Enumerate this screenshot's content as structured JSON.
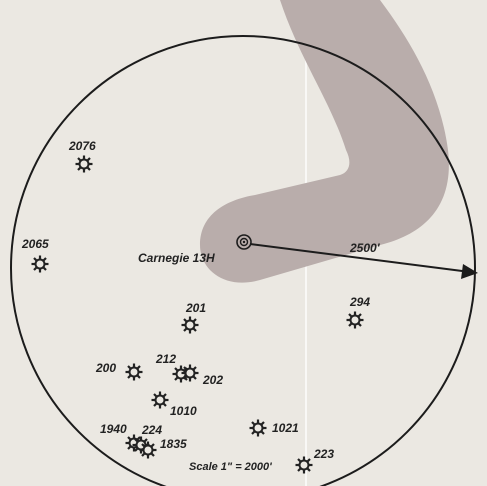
{
  "map": {
    "center_well": {
      "label": "Carnegie 13H"
    },
    "radius_label": "2500'",
    "scale_label": "Scale 1\" = 2000'",
    "wells": [
      {
        "id": "2076",
        "label": "2076"
      },
      {
        "id": "2065",
        "label": "2065"
      },
      {
        "id": "201",
        "label": "201"
      },
      {
        "id": "294",
        "label": "294"
      },
      {
        "id": "200",
        "label": "200"
      },
      {
        "id": "212",
        "label": "212"
      },
      {
        "id": "202",
        "label": "202"
      },
      {
        "id": "1010",
        "label": "1010"
      },
      {
        "id": "1940",
        "label": "1940"
      },
      {
        "id": "224",
        "label": "224"
      },
      {
        "id": "1835",
        "label": "1835"
      },
      {
        "id": "1021",
        "label": "1021"
      },
      {
        "id": "223",
        "label": "223"
      }
    ],
    "colors": {
      "lateral_path": "#b9adab",
      "ink": "#222222",
      "paper": "#ebe8e2"
    },
    "icons": {
      "well": "oil-well-icon",
      "center": "bullseye-icon"
    }
  }
}
